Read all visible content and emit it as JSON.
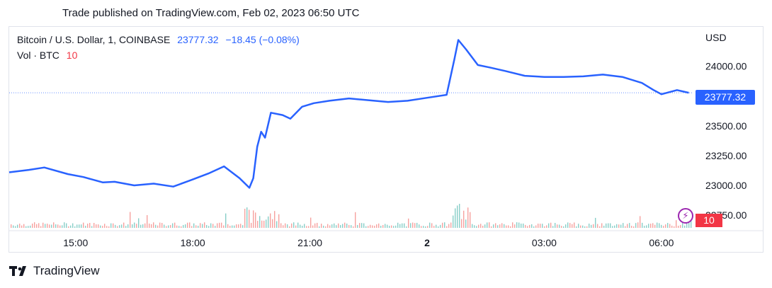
{
  "caption": "Trade published on TradingView.com, Feb 02, 2023 06:50 UTC",
  "legend": {
    "symbol": "Bitcoin / U.S. Dollar, 1, COINBASE",
    "last": "23777.32",
    "change": "−18.45 (−0.08%)",
    "vol_label": "Vol · BTC",
    "vol_value": "10"
  },
  "footer": {
    "brand": "TradingView"
  },
  "colors": {
    "line": "#2962ff",
    "vol_up": "#26a69a",
    "vol_down": "#ef5350",
    "accent_red": "#f23645"
  },
  "chart_data": {
    "type": "line",
    "currency": "USD",
    "x_ticks": [
      "15:00",
      "18:00",
      "21:00",
      "2",
      "03:00",
      "06:00"
    ],
    "x_tick_hours": [
      15,
      18,
      21,
      24,
      27,
      30
    ],
    "xlim_hours": [
      13.3,
      30.8
    ],
    "y_ticks": [
      "24000.00",
      "23750.00",
      "23500.00",
      "23250.00",
      "23000.00",
      "22750.00"
    ],
    "ylim": [
      22620,
      24330
    ],
    "last_price": "23777.32",
    "last_price_value": 23777.32,
    "volume_last": "10",
    "series": [
      {
        "x_hours": [
          13.3,
          13.8,
          14.2,
          14.8,
          15.2,
          15.7,
          16.0,
          16.5,
          17.0,
          17.5,
          18.0,
          18.4,
          18.8,
          19.2,
          19.45,
          19.55,
          19.65,
          19.75,
          19.85,
          20.0,
          20.3,
          20.5,
          20.8,
          21.1,
          21.5,
          22.0,
          22.5,
          23.0,
          23.5,
          24.0,
          24.5,
          24.7,
          24.8,
          25.0,
          25.3,
          25.6,
          26.0,
          26.5,
          27.0,
          27.5,
          28.0,
          28.5,
          29.0,
          29.5,
          29.8,
          30.0,
          30.4,
          30.7
        ],
        "y_values": [
          23110,
          23130,
          23150,
          23095,
          23070,
          23025,
          23030,
          23000,
          23015,
          22990,
          23050,
          23100,
          23160,
          23060,
          22980,
          23060,
          23325,
          23450,
          23400,
          23610,
          23590,
          23560,
          23660,
          23690,
          23710,
          23730,
          23715,
          23700,
          23710,
          23735,
          23760,
          24060,
          24220,
          24140,
          24010,
          23990,
          23960,
          23920,
          23910,
          23910,
          23915,
          23930,
          23910,
          23860,
          23800,
          23765,
          23800,
          23777
        ]
      }
    ]
  }
}
